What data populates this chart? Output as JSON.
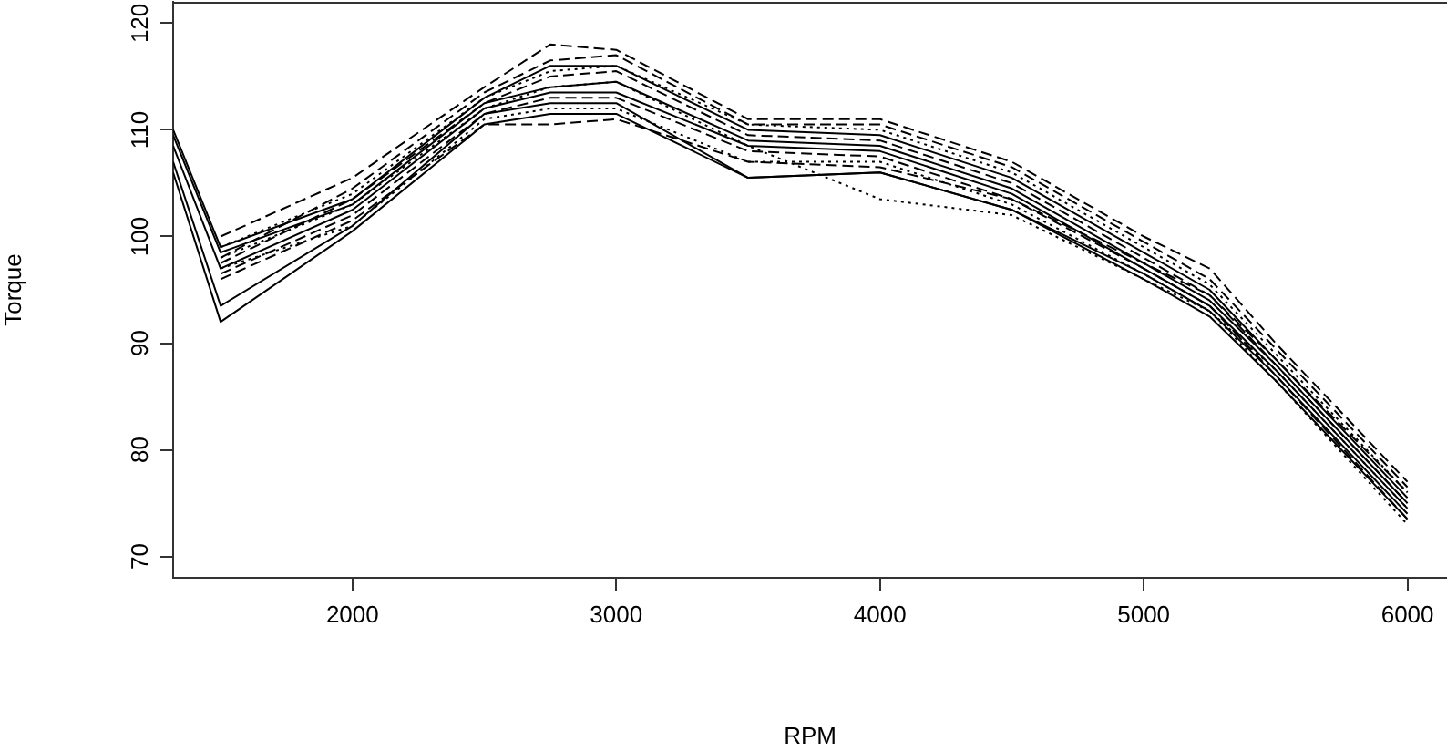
{
  "chart_data": {
    "type": "line",
    "xlabel": "RPM",
    "ylabel": "Torque",
    "x": [
      1320,
      1500,
      2000,
      2500,
      2750,
      3000,
      3500,
      4000,
      4500,
      5000,
      5250,
      5500,
      6000
    ],
    "xlim": [
      1320,
      6150
    ],
    "xticks": [
      2000,
      3000,
      4000,
      5000,
      6000
    ],
    "ylim": [
      68,
      122
    ],
    "yticks": [
      70,
      80,
      90,
      100,
      110,
      120
    ],
    "legend": false,
    "marker": "none",
    "series": [
      {
        "color": "#000000",
        "line_style": "solid",
        "values": [
          109.5,
          98.5,
          103,
          112.5,
          114,
          114.5,
          109,
          108.5,
          104.5,
          97.5,
          94,
          88,
          75
        ]
      },
      {
        "color": "#000000",
        "line_style": "solid",
        "values": [
          108.5,
          97,
          102.5,
          112,
          113.5,
          113.5,
          108.5,
          108,
          104,
          97,
          93.5,
          87.5,
          74.5
        ]
      },
      {
        "color": "#000000",
        "line_style": "solid",
        "values": [
          107,
          93.5,
          101,
          111.5,
          112.5,
          112.5,
          105.5,
          106,
          102.5,
          96.5,
          93,
          87,
          74
        ]
      },
      {
        "color": "#000000",
        "line_style": "solid",
        "values": [
          106,
          92,
          100.5,
          110.5,
          111.5,
          111.5,
          105.5,
          106,
          102.5,
          96,
          92.5,
          86.5,
          73.5
        ]
      },
      {
        "color": "#000000",
        "line_style": "solid",
        "values": [
          110,
          99,
          103.5,
          113,
          116,
          116,
          110,
          109.5,
          105.5,
          98.5,
          95,
          88.5,
          75.5
        ]
      },
      {
        "color": "#000000",
        "line_style": "dashed",
        "values": [
          null,
          100,
          105.5,
          114,
          118,
          117.5,
          111,
          111,
          107,
          100,
          97,
          90,
          77
        ]
      },
      {
        "color": "#000000",
        "line_style": "dashed",
        "values": [
          null,
          98,
          104.5,
          113.5,
          116.5,
          117,
          110.5,
          110.5,
          106.5,
          99.5,
          96,
          89.5,
          76.5
        ]
      },
      {
        "color": "#000000",
        "line_style": "dashed",
        "values": [
          null,
          97.5,
          103.5,
          112.5,
          115,
          115.5,
          109.5,
          109,
          105,
          98,
          94.5,
          88,
          75
        ]
      },
      {
        "color": "#000000",
        "line_style": "dashed",
        "values": [
          null,
          96.5,
          102,
          111.5,
          113,
          113,
          108,
          107.5,
          103.5,
          97,
          93.5,
          87,
          73.5
        ]
      },
      {
        "color": "#000000",
        "line_style": "dotted",
        "values": [
          null,
          99,
          104,
          113,
          115.5,
          116,
          110.5,
          110,
          106,
          99,
          95.5,
          89,
          76
        ]
      },
      {
        "color": "#000000",
        "line_style": "dotted",
        "values": [
          null,
          97,
          101,
          111,
          112,
          112,
          107,
          107,
          103,
          96.5,
          93,
          86.5,
          73
        ]
      },
      {
        "color": "#000000",
        "line_style": "dotted",
        "values": [
          null,
          98,
          103,
          112,
          114,
          114.5,
          108.5,
          103.5,
          102,
          96,
          93,
          87.5,
          74.5
        ]
      },
      {
        "color": "#000000",
        "line_style": "dashed",
        "values": [
          null,
          96,
          101.5,
          110.5,
          110.5,
          111,
          107,
          106.5,
          103.5,
          97.5,
          94.5,
          88.5,
          76
        ]
      }
    ]
  }
}
